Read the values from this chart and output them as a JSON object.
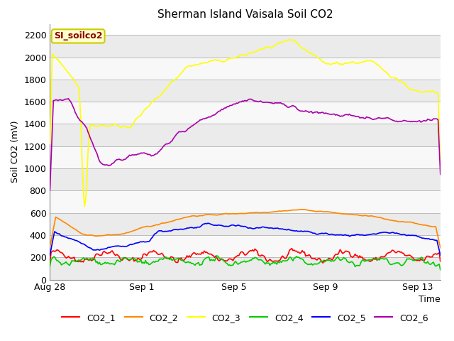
{
  "title": "Sherman Island Vaisala Soil CO2",
  "ylabel": "Soil CO2 (mV)",
  "xlabel": "Time",
  "annotation": "SI_soilco2",
  "annotation_bg": "#ffffcc",
  "annotation_border": "#cccc00",
  "annotation_text_color": "#8b0000",
  "xlim_days": [
    0,
    17
  ],
  "ylim": [
    0,
    2300
  ],
  "yticks": [
    0,
    200,
    400,
    600,
    800,
    1000,
    1200,
    1400,
    1600,
    1800,
    2000,
    2200
  ],
  "xtick_labels": [
    "Aug 28",
    "Sep 1",
    "Sep 5",
    "Sep 9",
    "Sep 13"
  ],
  "xtick_positions": [
    0,
    4,
    8,
    12,
    16
  ],
  "fig_bg_color": "#ffffff",
  "plot_bg_color": "#ffffff",
  "band_color_light": "#ebebeb",
  "band_color_white": "#f8f8f8",
  "grid_color": "#cccccc",
  "colors": {
    "CO2_1": "#ff0000",
    "CO2_2": "#ff8800",
    "CO2_3": "#ffff00",
    "CO2_4": "#00cc00",
    "CO2_5": "#0000ff",
    "CO2_6": "#aa00aa"
  },
  "linewidth": 1.2
}
